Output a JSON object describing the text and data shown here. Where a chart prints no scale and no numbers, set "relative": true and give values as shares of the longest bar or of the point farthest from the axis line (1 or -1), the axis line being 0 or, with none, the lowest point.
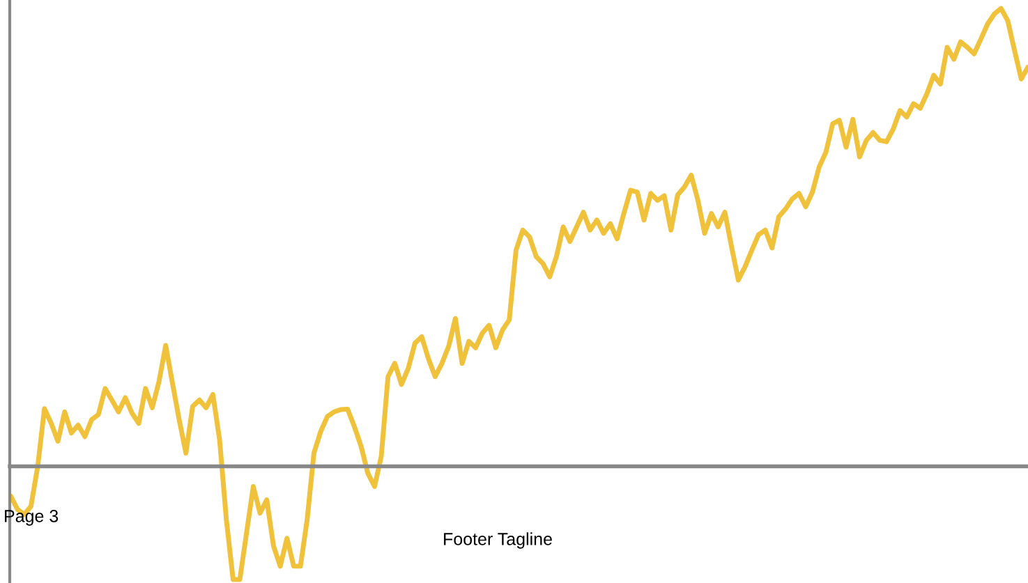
{
  "chart_data": {
    "type": "line",
    "relative": true,
    "marker": "none",
    "line_style": "solid",
    "annotations": [
      "Page 3",
      "Footer Tagline"
    ],
    "categories": [
      null,
      null,
      null,
      null,
      null,
      null,
      null,
      null,
      null,
      null,
      null,
      null,
      null,
      null,
      null,
      null,
      null,
      null,
      null,
      null,
      null,
      null,
      null,
      null,
      null,
      null,
      null,
      null,
      null,
      null,
      null,
      null,
      null,
      null,
      null,
      null,
      null,
      null,
      null,
      null,
      null,
      null,
      null,
      null,
      null,
      null,
      null,
      null,
      null,
      null,
      null,
      null,
      null,
      null,
      null,
      null,
      null,
      null,
      null,
      null,
      null,
      null,
      null,
      null,
      null,
      null,
      null,
      null,
      null,
      null,
      null,
      null,
      null,
      null,
      null,
      null,
      null,
      null,
      null,
      null,
      null,
      null,
      null,
      null,
      null,
      null,
      null,
      null,
      null,
      null,
      null,
      null,
      null,
      null,
      null,
      null,
      null,
      null,
      null,
      null,
      null,
      null,
      null,
      null,
      null,
      null,
      null,
      null,
      null,
      null,
      null,
      null,
      null,
      null,
      null,
      null,
      null,
      null,
      null,
      null,
      null,
      null,
      null,
      null,
      null,
      null,
      null,
      null,
      null,
      null,
      null,
      null,
      null,
      null,
      null,
      null,
      null,
      null,
      null,
      null,
      null,
      null,
      null,
      null,
      null,
      null,
      null,
      null,
      null,
      null,
      null,
      null
    ],
    "series": [
      {
        "color": "#f0c23b",
        "values": [
          -0.065,
          -0.094,
          -0.105,
          -0.087,
          0,
          0.126,
          0.094,
          0.055,
          0.119,
          0.073,
          0.09,
          0.065,
          0.102,
          0.113,
          0.17,
          0.145,
          0.119,
          0.15,
          0.116,
          0.094,
          0.17,
          0.128,
          0.185,
          0.264,
          0.182,
          0.102,
          0.029,
          0.131,
          0.145,
          0.128,
          0.157,
          0.058,
          -0.116,
          -0.247,
          -0.247,
          -0.145,
          -0.044,
          -0.102,
          -0.073,
          -0.174,
          -0.218,
          -0.157,
          -0.218,
          -0.218,
          -0.116,
          0.029,
          0.076,
          0.109,
          0.119,
          0.124,
          0.125,
          0.087,
          0.044,
          -0.015,
          -0.044,
          0.022,
          0.196,
          0.225,
          0.179,
          0.214,
          0.269,
          0.283,
          0.235,
          0.196,
          0.225,
          0.262,
          0.323,
          0.225,
          0.273,
          0.259,
          0.291,
          0.308,
          0.259,
          0.298,
          0.32,
          0.472,
          0.516,
          0.501,
          0.458,
          0.443,
          0.414,
          0.458,
          0.523,
          0.491,
          0.523,
          0.555,
          0.516,
          0.538,
          0.509,
          0.53,
          0.497,
          0.552,
          0.603,
          0.599,
          0.538,
          0.596,
          0.581,
          0.591,
          0.516,
          0.593,
          0.61,
          0.636,
          0.581,
          0.509,
          0.552,
          0.523,
          0.555,
          0.479,
          0.407,
          0.436,
          0.472,
          0.506,
          0.516,
          0.477,
          0.545,
          0.562,
          0.584,
          0.596,
          0.567,
          0.599,
          0.654,
          0.686,
          0.748,
          0.756,
          0.697,
          0.758,
          0.676,
          0.712,
          0.729,
          0.712,
          0.709,
          0.737,
          0.777,
          0.763,
          0.792,
          0.782,
          0.814,
          0.854,
          0.835,
          0.915,
          0.889,
          0.927,
          0.915,
          0.901,
          0.933,
          0.966,
          0.988,
          1,
          0.973,
          0.908,
          0.846,
          0.872
        ]
      }
    ]
  }
}
